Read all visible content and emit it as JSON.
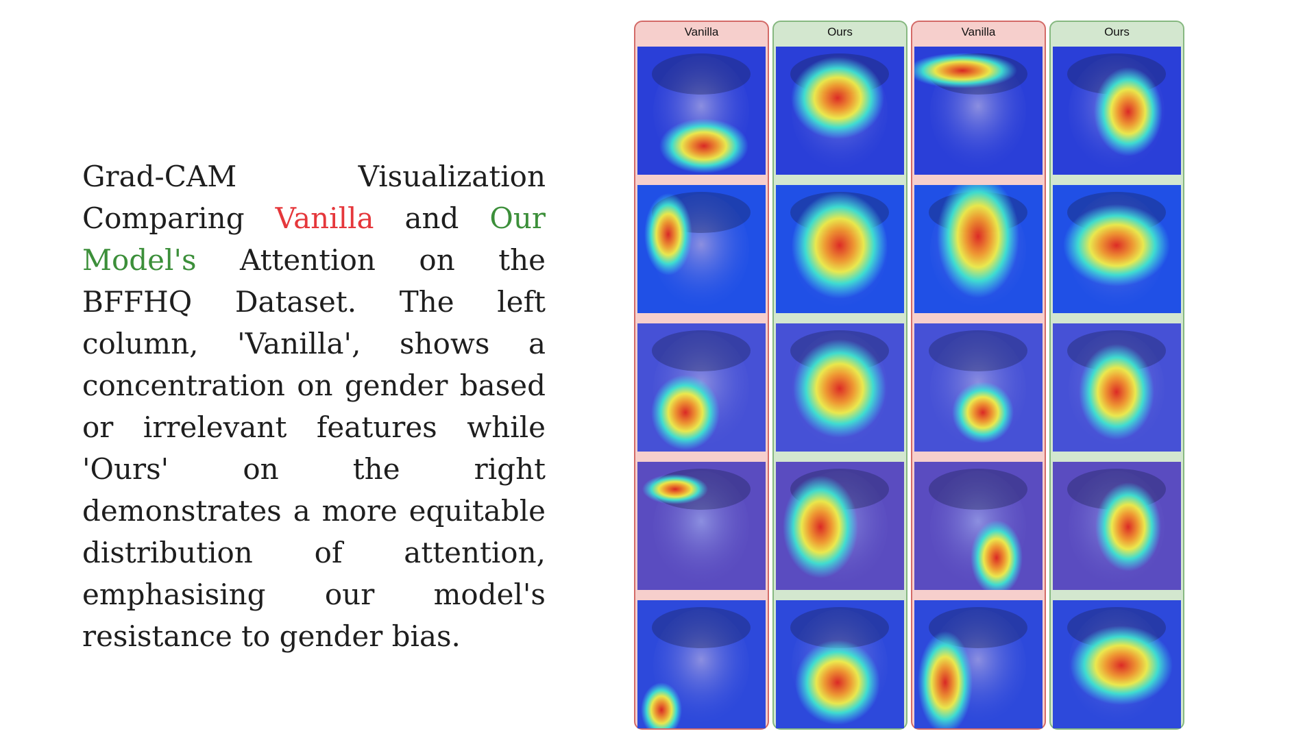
{
  "caption": {
    "part1": "Grad-CAM Visualization Comparing ",
    "vanilla_word": "Vanilla",
    "part2": " and ",
    "ours_words": "Our Model's",
    "part3": " Attention on the BFFHQ Dataset.  The left column, 'Vanilla', shows a concentration on gender based or irrelevant features while 'Ours' on the right demonstrates a more equitable distribution of attention, emphasising our model's resistance to gender bias."
  },
  "colors": {
    "vanilla_accent": "#e5373b",
    "ours_accent": "#3c8f3a",
    "vanilla_panel_fill": "#f6cfcc",
    "vanilla_panel_border": "#d36a67",
    "ours_panel_fill": "#d3e7cf",
    "ours_panel_border": "#86b880"
  },
  "figure": {
    "columns": [
      {
        "label": "Vanilla",
        "kind": "vanilla"
      },
      {
        "label": "Ours",
        "kind": "ours"
      },
      {
        "label": "Vanilla",
        "kind": "vanilla"
      },
      {
        "label": "Ours",
        "kind": "ours"
      }
    ],
    "image_rows": 5,
    "content": "Grad-CAM heatmaps (jet colormap) overlaid on face photographs"
  }
}
